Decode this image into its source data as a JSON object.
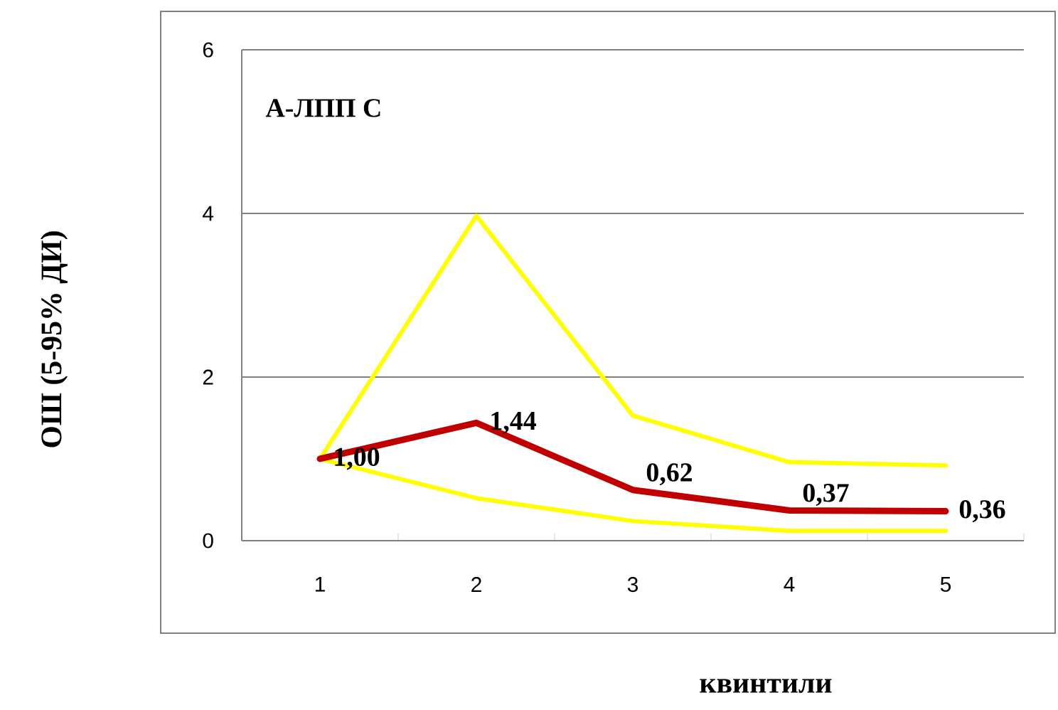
{
  "chart_data": {
    "type": "line",
    "title": "А-ЛПП С",
    "xlabel": "квинтили",
    "ylabel": "ОШ (5-95% ДИ)",
    "categories": [
      "1",
      "2",
      "3",
      "4",
      "5"
    ],
    "series": [
      {
        "color": "#ffff00",
        "values": [
          1.0,
          3.97,
          1.53,
          0.96,
          0.92
        ]
      },
      {
        "color": "#ffff00",
        "values": [
          1.0,
          0.52,
          0.24,
          0.12,
          0.12
        ]
      },
      {
        "color": "#c00000",
        "values": [
          1.0,
          1.44,
          0.62,
          0.37,
          0.36
        ],
        "value_labels": [
          "1,00",
          "1,44",
          "0,62",
          "0,37",
          "0,36"
        ]
      }
    ],
    "ylim": [
      0,
      6
    ],
    "yticks": [
      0,
      2,
      4,
      6
    ],
    "grid": "y",
    "marker": "none",
    "line_style": "solid"
  }
}
